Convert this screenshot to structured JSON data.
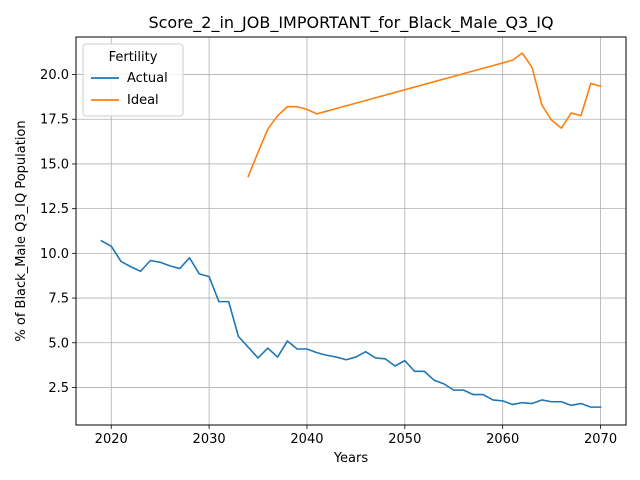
{
  "chart_data": {
    "type": "line",
    "title": "Score_2_in_JOB_IMPORTANT_for_Black_Male_Q3_IQ",
    "xlabel": "Years",
    "ylabel": "% of Black_Male Q3_IQ Population",
    "xlim": [
      2016.4,
      2072.6
    ],
    "ylim": [
      0.4,
      22.1
    ],
    "xticks": [
      2020,
      2030,
      2040,
      2050,
      2060,
      2070
    ],
    "yticks": [
      2.5,
      5.0,
      7.5,
      10.0,
      12.5,
      15.0,
      17.5,
      20.0
    ],
    "xtick_labels": [
      "2020",
      "2030",
      "2040",
      "2050",
      "2060",
      "2070"
    ],
    "ytick_labels": [
      "2.5",
      "5.0",
      "7.5",
      "10.0",
      "12.5",
      "15.0",
      "17.5",
      "20.0"
    ],
    "grid": true,
    "legend": {
      "title": "Fertility",
      "placement": "top-left"
    },
    "series": [
      {
        "name": "Actual",
        "color": "#1f77b4",
        "x": [
          2019,
          2020,
          2021,
          2022,
          2023,
          2024,
          2025,
          2026,
          2027,
          2028,
          2029,
          2030,
          2031,
          2032,
          2033,
          2034,
          2035,
          2036,
          2037,
          2038,
          2039,
          2040,
          2041,
          2042,
          2043,
          2044,
          2045,
          2046,
          2047,
          2048,
          2049,
          2050,
          2051,
          2052,
          2053,
          2054,
          2055,
          2056,
          2057,
          2058,
          2059,
          2060,
          2061,
          2062,
          2063,
          2064,
          2065,
          2066,
          2067,
          2068,
          2069,
          2070
        ],
        "y": [
          10.7,
          10.4,
          9.55,
          9.25,
          9.0,
          9.6,
          9.5,
          9.3,
          9.15,
          9.75,
          8.85,
          8.7,
          7.3,
          7.3,
          5.35,
          4.75,
          4.15,
          4.7,
          4.2,
          5.1,
          4.65,
          4.65,
          4.45,
          4.3,
          4.2,
          4.05,
          4.2,
          4.5,
          4.15,
          4.1,
          3.7,
          4.0,
          3.4,
          3.4,
          2.9,
          2.7,
          2.35,
          2.35,
          2.1,
          2.1,
          1.8,
          1.75,
          1.55,
          1.65,
          1.6,
          1.8,
          1.7,
          1.7,
          1.5,
          1.6,
          1.4,
          1.4
        ]
      },
      {
        "name": "Ideal",
        "color": "#ff7f0e",
        "x": [
          2034,
          2035,
          2036,
          2037,
          2038,
          2039,
          2040,
          2041,
          2042,
          2043,
          2044,
          2045,
          2046,
          2047,
          2048,
          2049,
          2050,
          2051,
          2052,
          2053,
          2054,
          2055,
          2056,
          2057,
          2058,
          2059,
          2060,
          2061,
          2062,
          2063,
          2064,
          2065,
          2066,
          2067,
          2068,
          2069,
          2070
        ],
        "y": [
          14.3,
          15.65,
          16.95,
          17.7,
          18.2,
          18.2,
          18.05,
          17.8,
          17.95,
          18.1,
          18.25,
          18.4,
          18.55,
          18.7,
          18.85,
          19.0,
          19.15,
          19.3,
          19.45,
          19.6,
          19.75,
          19.9,
          20.05,
          20.2,
          20.35,
          20.5,
          20.65,
          20.8,
          21.2,
          20.4,
          18.3,
          17.45,
          17.0,
          17.85,
          17.7,
          19.5,
          19.35
        ]
      }
    ]
  }
}
